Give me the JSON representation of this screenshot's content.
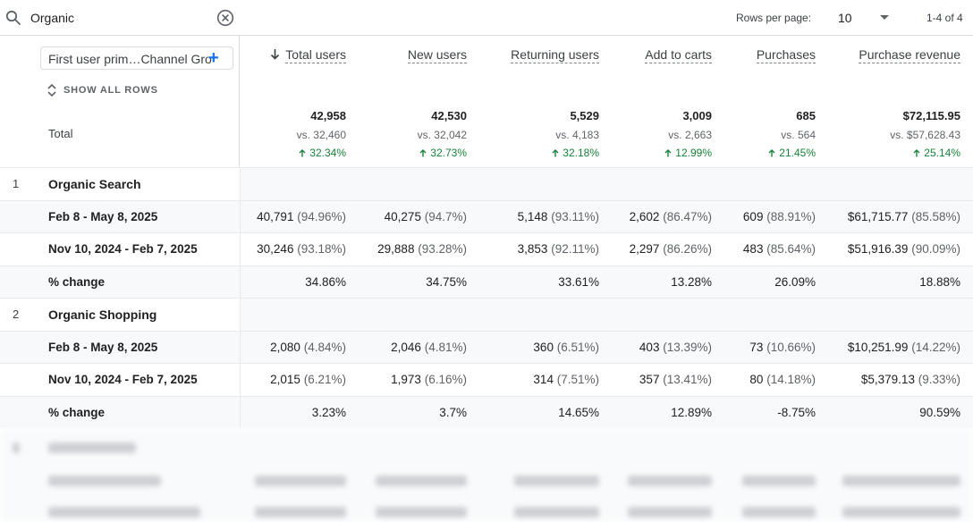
{
  "toolbar": {
    "search_value": "Organic",
    "rows_per_page_label": "Rows per page:",
    "rows_per_page_value": "10",
    "pagination": "1-4 of 4"
  },
  "dimension": {
    "picker_label": "First user prim…Channel Gro",
    "show_all_rows": "SHOW ALL ROWS",
    "total_label": "Total"
  },
  "columns": [
    {
      "header": "Total users",
      "sorted": true,
      "total": "42,958",
      "vs": "vs. 32,460",
      "change": "32.34%"
    },
    {
      "header": "New users",
      "total": "42,530",
      "vs": "vs. 32,042",
      "change": "32.73%"
    },
    {
      "header": "Returning users",
      "total": "5,529",
      "vs": "vs. 4,183",
      "change": "32.18%"
    },
    {
      "header": "Add to carts",
      "total": "3,009",
      "vs": "vs. 2,663",
      "change": "12.99%"
    },
    {
      "header": "Purchases",
      "total": "685",
      "vs": "vs. 564",
      "change": "21.45%"
    },
    {
      "header": "Purchase revenue",
      "total": "$72,115.95",
      "vs": "vs. $57,628.43",
      "change": "25.14%"
    }
  ],
  "rows": [
    {
      "type": "group",
      "num": "1",
      "label": "Organic Search"
    },
    {
      "type": "period",
      "label": "Feb 8 - May 8, 2025",
      "cells": [
        {
          "v": "40,791",
          "p": "(94.96%)"
        },
        {
          "v": "40,275",
          "p": "(94.7%)"
        },
        {
          "v": "5,148",
          "p": "(93.11%)"
        },
        {
          "v": "2,602",
          "p": "(86.47%)"
        },
        {
          "v": "609",
          "p": "(88.91%)"
        },
        {
          "v": "$61,715.77",
          "p": "(85.58%)"
        }
      ]
    },
    {
      "type": "period",
      "label": "Nov 10, 2024 - Feb 7, 2025",
      "cells": [
        {
          "v": "30,246",
          "p": "(93.18%)"
        },
        {
          "v": "29,888",
          "p": "(93.28%)"
        },
        {
          "v": "3,853",
          "p": "(92.11%)"
        },
        {
          "v": "2,297",
          "p": "(86.26%)"
        },
        {
          "v": "483",
          "p": "(85.64%)"
        },
        {
          "v": "$51,916.39",
          "p": "(90.09%)"
        }
      ]
    },
    {
      "type": "change",
      "label": "% change",
      "cells": [
        {
          "v": "34.86%"
        },
        {
          "v": "34.75%"
        },
        {
          "v": "33.61%"
        },
        {
          "v": "13.28%"
        },
        {
          "v": "26.09%"
        },
        {
          "v": "18.88%"
        }
      ]
    },
    {
      "type": "group",
      "num": "2",
      "label": "Organic Shopping"
    },
    {
      "type": "period",
      "label": "Feb 8 - May 8, 2025",
      "cells": [
        {
          "v": "2,080",
          "p": "(4.84%)"
        },
        {
          "v": "2,046",
          "p": "(4.81%)"
        },
        {
          "v": "360",
          "p": "(6.51%)"
        },
        {
          "v": "403",
          "p": "(13.39%)"
        },
        {
          "v": "73",
          "p": "(10.66%)"
        },
        {
          "v": "$10,251.99",
          "p": "(14.22%)"
        }
      ]
    },
    {
      "type": "period",
      "label": "Nov 10, 2024 - Feb 7, 2025",
      "cells": [
        {
          "v": "2,015",
          "p": "(6.21%)"
        },
        {
          "v": "1,973",
          "p": "(6.16%)"
        },
        {
          "v": "314",
          "p": "(7.51%)"
        },
        {
          "v": "357",
          "p": "(13.41%)"
        },
        {
          "v": "80",
          "p": "(14.18%)"
        },
        {
          "v": "$5,379.13",
          "p": "(9.33%)"
        }
      ]
    },
    {
      "type": "change",
      "label": "% change",
      "cells": [
        {
          "v": "3.23%"
        },
        {
          "v": "3.7%"
        },
        {
          "v": "14.65%"
        },
        {
          "v": "12.89%"
        },
        {
          "v": "-8.75%"
        },
        {
          "v": "90.59%"
        }
      ]
    }
  ],
  "colors": {
    "accent": "#1a73e8",
    "positive": "#188038",
    "border": "#dadce0"
  }
}
